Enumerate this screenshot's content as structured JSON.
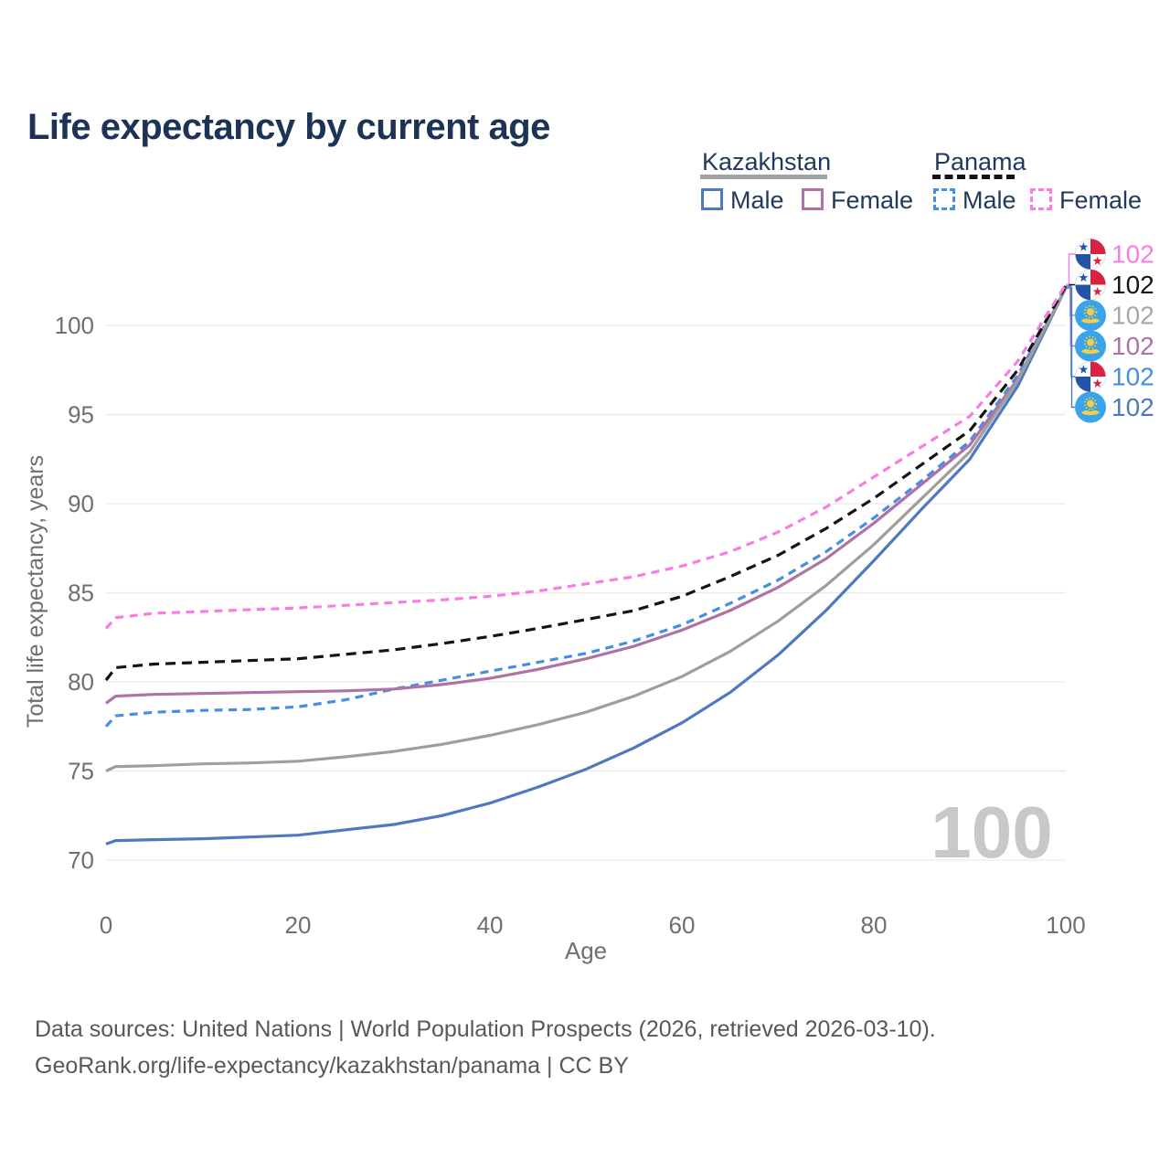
{
  "title": "Life expectancy by current age",
  "legend": {
    "groups": [
      {
        "country": "Kazakhstan",
        "style": "solid",
        "items": [
          {
            "label": "Male"
          },
          {
            "label": "Female"
          }
        ]
      },
      {
        "country": "Panama",
        "style": "dashed",
        "items": [
          {
            "label": "Male"
          },
          {
            "label": "Female"
          }
        ]
      }
    ]
  },
  "footer": {
    "line1": "Data sources: United Nations | World Population Prospects (2026, retrieved 2026-03-10).",
    "line2": "GeoRank.org/life-expectancy/kazakhstan/panama | CC BY"
  },
  "colors": {
    "kz_male": "#4e78bf",
    "kz_female": "#ad72a6",
    "kz_all": "#9e9e9e",
    "pa_male": "#458ee6",
    "pa_all": "#141414",
    "pa_female": "#fa7ce3",
    "grid": "#e9e9e9",
    "axis_text": "#6f6f6f",
    "title_text": "#1d3356",
    "legend_text": "#22395e",
    "footer_text": "#55585c",
    "watermark": "#c8c8c8",
    "flag_kz_blue": "#3aa3e9",
    "flag_kz_yellow": "#f3cf45",
    "flag_pa_red": "#da2140",
    "flag_pa_blue": "#2553a8"
  },
  "chart_data": {
    "type": "line",
    "title": "Life expectancy by current age",
    "xlabel": "Age",
    "ylabel": "Total life expectancy, years",
    "x_ticks": [
      0,
      20,
      40,
      60,
      80,
      100
    ],
    "y_ticks": [
      70,
      75,
      80,
      85,
      90,
      95,
      100
    ],
    "xlim": [
      0,
      100
    ],
    "ylim": [
      68.5,
      104
    ],
    "grid": "horizontal",
    "legend_position": "top-right",
    "watermark_age": "100",
    "ages": [
      0,
      1,
      5,
      10,
      15,
      20,
      25,
      30,
      35,
      40,
      45,
      50,
      55,
      60,
      65,
      70,
      75,
      80,
      85,
      90,
      95,
      100
    ],
    "series": [
      {
        "id": "panama-female",
        "country": "Panama",
        "sex": "Female",
        "line": "dashed",
        "color": "#fa7ce3",
        "flag": "panama",
        "end_label": "102",
        "values": [
          83.0,
          83.6,
          83.85,
          83.95,
          84.05,
          84.15,
          84.3,
          84.45,
          84.6,
          84.8,
          85.1,
          85.5,
          85.9,
          86.5,
          87.3,
          88.4,
          89.8,
          91.5,
          93.2,
          94.9,
          98.0,
          102.3
        ]
      },
      {
        "id": "panama-all",
        "country": "Panama",
        "sex": "Both sexes",
        "line": "dashed",
        "color": "#141414",
        "flag": "panama",
        "end_label": "102",
        "values": [
          80.1,
          80.8,
          81.0,
          81.1,
          81.2,
          81.3,
          81.55,
          81.8,
          82.15,
          82.55,
          83.0,
          83.5,
          84.0,
          84.8,
          85.9,
          87.1,
          88.6,
          90.3,
          92.2,
          94.1,
          97.5,
          102.2
        ]
      },
      {
        "id": "kazakhstan-all",
        "country": "Kazakhstan",
        "sex": "Both sexes",
        "line": "solid",
        "color": "#9e9e9e",
        "label_color": "#a7a7a7",
        "flag": "kazakhstan",
        "end_label": "102",
        "values": [
          75.0,
          75.25,
          75.3,
          75.4,
          75.45,
          75.55,
          75.8,
          76.1,
          76.5,
          77.0,
          77.6,
          78.3,
          79.2,
          80.3,
          81.7,
          83.4,
          85.4,
          87.7,
          90.3,
          92.9,
          96.9,
          102.1
        ]
      },
      {
        "id": "kazakhstan-female",
        "country": "Kazakhstan",
        "sex": "Female",
        "line": "solid",
        "color": "#ad72a6",
        "flag": "kazakhstan",
        "end_label": "102",
        "values": [
          78.8,
          79.2,
          79.3,
          79.35,
          79.4,
          79.45,
          79.5,
          79.6,
          79.85,
          80.2,
          80.7,
          81.3,
          82.0,
          82.9,
          84.0,
          85.3,
          86.9,
          88.9,
          91.1,
          93.3,
          97.0,
          102.1
        ]
      },
      {
        "id": "panama-male",
        "country": "Panama",
        "sex": "Male",
        "line": "dashed",
        "color": "#458ee6",
        "flag": "panama",
        "end_label": "102",
        "values": [
          77.5,
          78.1,
          78.3,
          78.4,
          78.45,
          78.6,
          79.0,
          79.6,
          80.1,
          80.6,
          81.1,
          81.6,
          82.3,
          83.2,
          84.4,
          85.7,
          87.3,
          89.2,
          91.3,
          93.5,
          97.2,
          102.2
        ]
      },
      {
        "id": "kazakhstan-male",
        "country": "Kazakhstan",
        "sex": "Male",
        "line": "solid",
        "color": "#4e78bf",
        "flag": "kazakhstan",
        "end_label": "102",
        "values": [
          70.9,
          71.1,
          71.15,
          71.2,
          71.3,
          71.4,
          71.7,
          72.0,
          72.5,
          73.2,
          74.1,
          75.1,
          76.3,
          77.7,
          79.4,
          81.5,
          84.0,
          86.8,
          89.7,
          92.5,
          96.6,
          102.1
        ]
      }
    ]
  }
}
